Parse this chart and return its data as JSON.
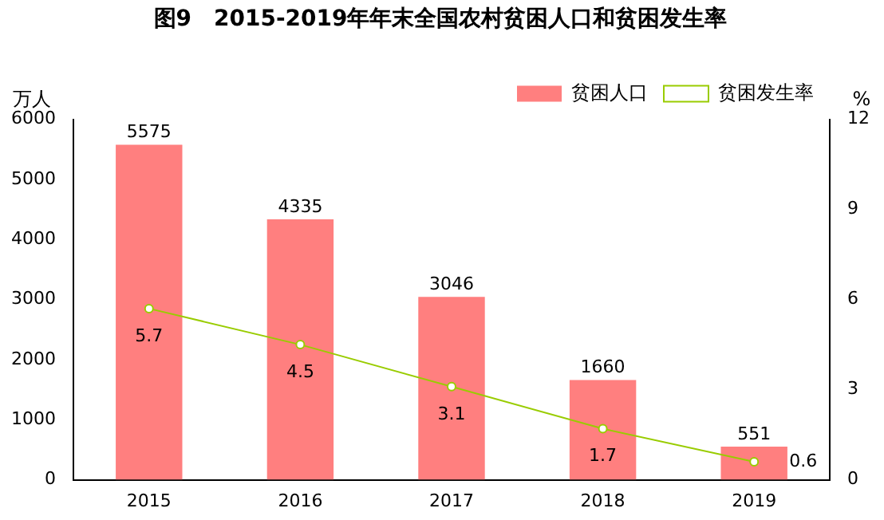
{
  "chart_data": {
    "type": "bar",
    "title": "图9　2015-2019年年末全国农村贫困人口和贫困发生率",
    "ylabel": "万人",
    "y2label": "%",
    "categories": [
      "2015",
      "2016",
      "2017",
      "2018",
      "2019"
    ],
    "series": [
      {
        "name": "贫困人口",
        "color": "#ff7f7f",
        "values": [
          5575,
          4335,
          3046,
          1660,
          551
        ]
      },
      {
        "name": "贫困发生率",
        "type": "line",
        "axis": "y2",
        "color": "#99cc00",
        "marker": "circle",
        "values": [
          5.7,
          4.5,
          3.1,
          1.7,
          0.6
        ]
      }
    ],
    "ylim": [
      0,
      6000
    ],
    "yticks": [
      0,
      1000,
      2000,
      3000,
      4000,
      5000,
      6000
    ],
    "y2lim": [
      0,
      12
    ],
    "y2ticks": [
      0,
      3,
      6,
      9,
      12
    ],
    "data_labels": true,
    "grid": false,
    "legend": "top right"
  }
}
